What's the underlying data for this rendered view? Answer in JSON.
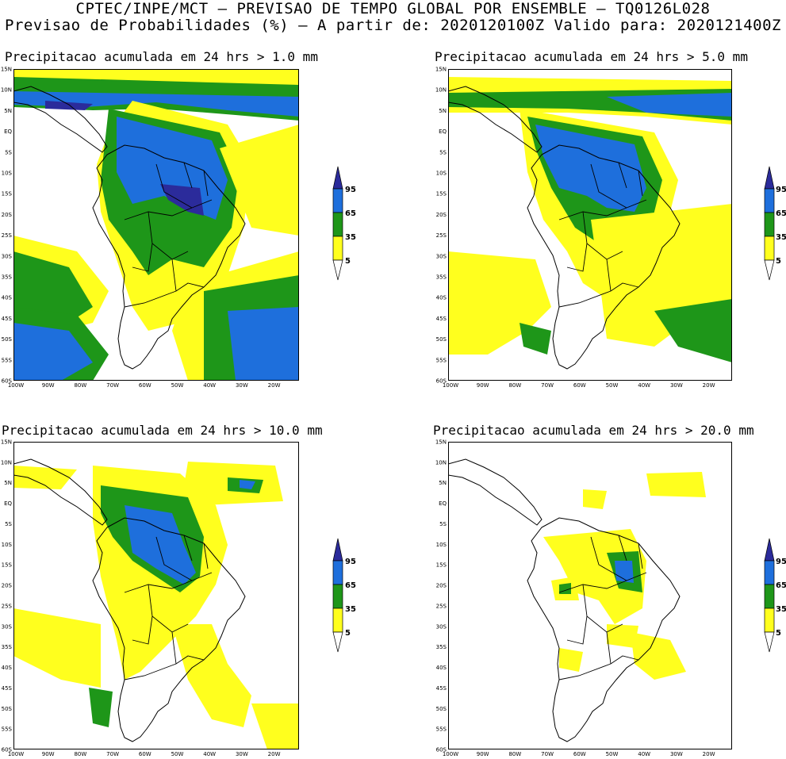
{
  "header": {
    "line1": "CPTEC/INPE/MCT – PREVISAO DE TEMPO GLOBAL POR ENSEMBLE – TQ0126L028",
    "line2": "Previsao de Probabilidades (%) –   A partir de: 2020120100Z  Valido para: 2020121400Z"
  },
  "panels": [
    {
      "id": "p1",
      "title": "Precipitacao acumulada em 24 hrs > 1.0 mm"
    },
    {
      "id": "p2",
      "title": "Precipitacao acumulada em 24 hrs > 5.0 mm"
    },
    {
      "id": "p3",
      "title": "Precipitacao acumulada em 24 hrs > 10.0 mm"
    },
    {
      "id": "p4",
      "title": "Precipitacao acumulada em 24 hrs > 20.0 mm"
    }
  ],
  "axes": {
    "lat_labels": [
      "15N",
      "10N",
      "5N",
      "EQ",
      "5S",
      "10S",
      "15S",
      "20S",
      "25S",
      "30S",
      "35S",
      "40S",
      "45S",
      "50S",
      "55S",
      "60S"
    ],
    "lon_labels": [
      "100W",
      "90W",
      "80W",
      "70W",
      "60W",
      "50W",
      "40W",
      "30W",
      "20W"
    ]
  },
  "colorbar": {
    "labels": [
      "95",
      "65",
      "35",
      "5"
    ],
    "colors": {
      "95": "#2b2b9b",
      "65": "#1e6fdc",
      "35": "#1e9619",
      "5": "#ffff1e"
    }
  }
}
